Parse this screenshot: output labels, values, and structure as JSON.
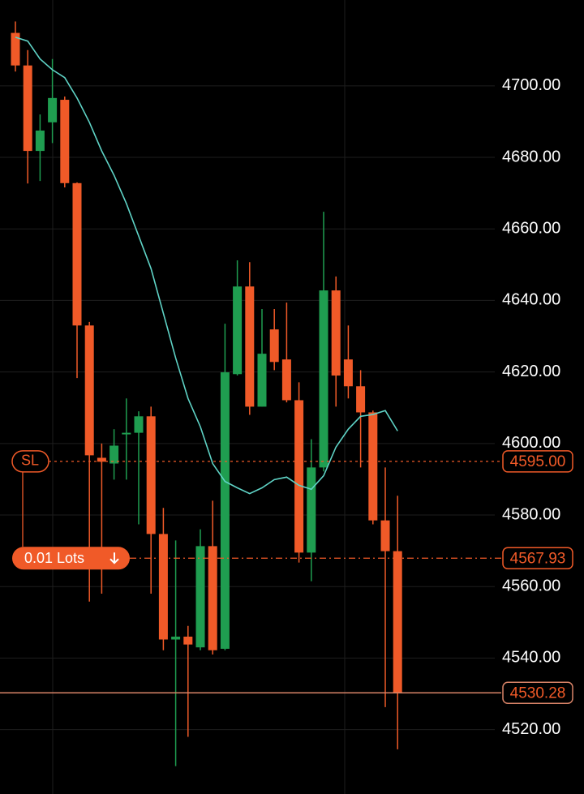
{
  "chart_data": {
    "type": "candlestick",
    "ylim": [
      4502,
      4724
    ],
    "yticks": [
      {
        "value": 4520,
        "label": "4520.00"
      },
      {
        "value": 4540,
        "label": "4540.00"
      },
      {
        "value": 4560,
        "label": "4560.00"
      },
      {
        "value": 4580,
        "label": "4580.00"
      },
      {
        "value": 4600,
        "label": "4600.00"
      },
      {
        "value": 4620,
        "label": "4620.00"
      },
      {
        "value": 4640,
        "label": "4640.00"
      },
      {
        "value": 4660,
        "label": "4660.00"
      },
      {
        "value": 4680,
        "label": "4680.00"
      },
      {
        "value": 4700,
        "label": "4700.00"
      }
    ],
    "grid": true,
    "up_color": "#1f9d50",
    "down_color": "#f05a28",
    "open": [
      4714.8,
      4705.7,
      4681.8,
      4689.8,
      4696.1,
      4672.8,
      4633,
      4596,
      4594.4,
      4602.6,
      4603,
      4607.6,
      4574.7,
      4545.2,
      4546,
      4543,
      4571.3,
      4542.6,
      4619.4,
      4643.9,
      4610.3,
      4631.9,
      4623.5,
      4612.1,
      4569.5,
      4593.3,
      4642.8,
      4623.5,
      4616,
      4608.7,
      4578.5,
      4569.9
    ],
    "high": [
      4718,
      4710,
      4692,
      4707.5,
      4697,
      4673,
      4634,
      4600,
      4604,
      4612.6,
      4609,
      4610.3,
      4582,
      4572.9,
      4549,
      4576,
      4584,
      4633.5,
      4651.2,
      4650.7,
      4637.6,
      4637.6,
      4639.4,
      4617.1,
      4601.2,
      4664.8,
      4646.7,
      4633,
      4620.5,
      4609.2,
      4593.3,
      4585.4
    ],
    "low": [
      4704,
      4672.7,
      4673.4,
      4684,
      4671.6,
      4618.3,
      4555.8,
      4558,
      4589.9,
      4589.9,
      4577.4,
      4558,
      4542.2,
      4509.8,
      4518,
      4542.2,
      4541,
      4542.2,
      4619,
      4608,
      4610.3,
      4620.5,
      4611.5,
      4566.7,
      4561.5,
      4592.2,
      4610.3,
      4612.6,
      4593.3,
      4577.4,
      4526.3,
      4514.5
    ],
    "close": [
      4705.7,
      4681.8,
      4687.5,
      4696.6,
      4672.8,
      4633,
      4596.7,
      4594.9,
      4599.4,
      4603,
      4607.6,
      4574.7,
      4545.2,
      4546,
      4543.8,
      4571.3,
      4542.2,
      4619.9,
      4643.9,
      4610.3,
      4625.1,
      4622.8,
      4612.1,
      4569.5,
      4593.3,
      4642.8,
      4619,
      4616,
      4608.7,
      4578.5,
      4569.9,
      4530.3
    ],
    "moving_average": {
      "color": "#5fd3c6",
      "values": [
        4713.6,
        4712.5,
        4707.5,
        4704.5,
        4702.3,
        4696.6,
        4689.8,
        4681.8,
        4675.0,
        4667.1,
        4658.0,
        4648.9,
        4636.4,
        4623.9,
        4612.6,
        4604.7,
        4594.4,
        4589.4,
        4587.6,
        4586.0,
        4587.6,
        4589.9,
        4590.6,
        4588.3,
        4587.2,
        4591.0,
        4599.0,
        4604.0,
        4607.6,
        4608.1,
        4609.2,
        4603.5
      ]
    },
    "stop_loss": {
      "tag": "SL",
      "value": 4595.0,
      "label": "4595.00"
    },
    "order": {
      "tag": "0.01 Lots",
      "value": 4567.93,
      "label": "4567.93"
    },
    "current_price": {
      "value": 4530.28,
      "label": "4530.28"
    }
  }
}
